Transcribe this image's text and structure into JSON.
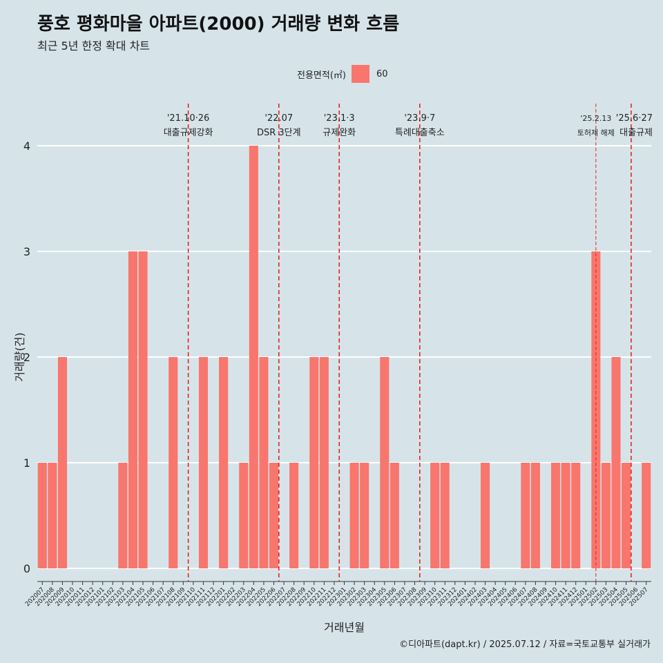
{
  "title": "풍호 평화마을 아파트(2000) 거래량 변화 흐름",
  "subtitle": "최근 5년 한정 확대 차트",
  "legend": {
    "title": "전용면적(㎡)",
    "label": "60",
    "color": "#f8766d"
  },
  "caption": "©디아파트(dapt.kr) / 2025.07.12 / 자료=국토교통부 실거래가",
  "chart_data": {
    "type": "bar",
    "title": "풍호 평화마을 아파트(2000) 거래량 변화 흐름",
    "subtitle": "최근 5년 한정 확대 차트",
    "xlabel": "거래년월",
    "ylabel": "거래량(건)",
    "ylim": [
      0,
      4
    ],
    "yticks": [
      0,
      1,
      2,
      3,
      4
    ],
    "grid": true,
    "legend_position": "top",
    "categories": [
      "202007",
      "202008",
      "202009",
      "202010",
      "202011",
      "202012",
      "202101",
      "202102",
      "202103",
      "202104",
      "202105",
      "202106",
      "202107",
      "202108",
      "202109",
      "202110",
      "202111",
      "202112",
      "202201",
      "202202",
      "202203",
      "202204",
      "202205",
      "202206",
      "202207",
      "202208",
      "202209",
      "202210",
      "202211",
      "202212",
      "202301",
      "202302",
      "202303",
      "202304",
      "202305",
      "202306",
      "202307",
      "202308",
      "202309",
      "202310",
      "202311",
      "202312",
      "202401",
      "202402",
      "202403",
      "202404",
      "202405",
      "202406",
      "202407",
      "202408",
      "202409",
      "202410",
      "202411",
      "202412",
      "202501",
      "202502",
      "202503",
      "202504",
      "202505",
      "202506",
      "202507"
    ],
    "series": [
      {
        "name": "60",
        "color": "#f8766d",
        "values": [
          1,
          1,
          2,
          0,
          0,
          0,
          0,
          0,
          1,
          3,
          3,
          0,
          0,
          2,
          0,
          0,
          2,
          0,
          2,
          0,
          1,
          4,
          2,
          1,
          0,
          1,
          0,
          2,
          2,
          0,
          0,
          1,
          1,
          0,
          2,
          1,
          0,
          0,
          0,
          1,
          1,
          0,
          0,
          0,
          1,
          0,
          0,
          0,
          1,
          1,
          0,
          1,
          1,
          1,
          0,
          3,
          1,
          2,
          1,
          0,
          1
        ]
      }
    ],
    "annotations": [
      {
        "index": 15,
        "date": "'21.10·26",
        "label": "대출규제강화",
        "style": "dashed"
      },
      {
        "index": 24,
        "date": "'22.07",
        "label": "DSR 3단계",
        "style": "dashed"
      },
      {
        "index": 30,
        "date": "'23.1·3",
        "label": "규제완화",
        "style": "dashed"
      },
      {
        "index": 38,
        "date": "'23.9·7",
        "label": "특례대출축소",
        "style": "dashed"
      },
      {
        "index": 55,
        "date": "'25.2.13",
        "label": "토허제 해제",
        "style": "thin"
      },
      {
        "index": 59,
        "date": "'25.6·27",
        "label": "대출규제",
        "style": "dashed"
      }
    ]
  }
}
